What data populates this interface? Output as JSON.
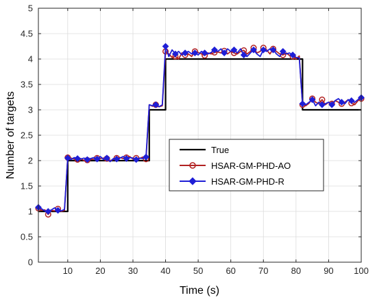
{
  "chart_data": {
    "type": "line",
    "title": "",
    "xlabel": "Time (s)",
    "ylabel": "Number of targets",
    "xlim": [
      1,
      100
    ],
    "ylim": [
      0,
      5
    ],
    "xticks": [
      10,
      20,
      30,
      40,
      50,
      60,
      70,
      80,
      90,
      100
    ],
    "yticks": [
      0,
      0.5,
      1,
      1.5,
      2,
      2.5,
      3,
      3.5,
      4,
      4.5,
      5
    ],
    "ytick_labels": [
      "0",
      "0.5",
      "1",
      "1.5",
      "2",
      "2.5",
      "3",
      "3.5",
      "4",
      "4.5",
      "5"
    ],
    "grid": true,
    "legend_position": "center-right",
    "series": [
      {
        "name": "True",
        "color": "#000000",
        "marker": "none",
        "x": [
          1,
          10,
          10,
          35,
          35,
          40,
          40,
          82,
          82,
          100
        ],
        "y": [
          1,
          1,
          2,
          2,
          3,
          3,
          4,
          4,
          3,
          3
        ]
      },
      {
        "name": "HSAR-GM-PHD-AO",
        "color": "#b22222",
        "marker": "circle",
        "x": [
          1,
          2,
          3,
          4,
          5,
          6,
          7,
          8,
          9,
          10,
          11,
          12,
          13,
          14,
          15,
          16,
          17,
          18,
          19,
          20,
          21,
          22,
          23,
          24,
          25,
          26,
          27,
          28,
          29,
          30,
          31,
          32,
          33,
          34,
          35,
          36,
          37,
          38,
          39,
          40,
          41,
          42,
          43,
          44,
          45,
          46,
          47,
          48,
          49,
          50,
          51,
          52,
          53,
          54,
          55,
          56,
          57,
          58,
          59,
          60,
          61,
          62,
          63,
          64,
          65,
          66,
          67,
          68,
          69,
          70,
          71,
          72,
          73,
          74,
          75,
          76,
          77,
          78,
          79,
          80,
          81,
          82,
          83,
          84,
          85,
          86,
          87,
          88,
          89,
          90,
          91,
          92,
          93,
          94,
          95,
          96,
          97,
          98,
          99,
          100
        ],
        "y": [
          1.06,
          1.02,
          1.03,
          0.94,
          1.02,
          1.01,
          1.05,
          1.0,
          1.02,
          2.06,
          2.05,
          2.03,
          2.02,
          2.04,
          2.0,
          2.01,
          2.02,
          2.03,
          2.05,
          2.04,
          2.05,
          2.04,
          2.0,
          2.02,
          2.05,
          2.06,
          2.04,
          2.06,
          2.08,
          2.03,
          2.05,
          2.04,
          2.07,
          2.03,
          3.1,
          3.07,
          3.1,
          3.06,
          3.08,
          4.15,
          4.1,
          4.03,
          4.05,
          4.0,
          4.12,
          4.08,
          4.1,
          4.05,
          4.15,
          4.13,
          4.1,
          4.07,
          4.12,
          4.1,
          4.13,
          4.14,
          4.12,
          4.16,
          4.1,
          4.15,
          4.12,
          4.1,
          4.15,
          4.17,
          4.1,
          4.15,
          4.22,
          4.12,
          4.15,
          4.22,
          4.18,
          4.1,
          4.2,
          4.15,
          4.1,
          4.08,
          4.12,
          4.07,
          4.05,
          4.0,
          4.06,
          3.1,
          3.08,
          3.13,
          3.22,
          3.15,
          3.12,
          3.2,
          3.1,
          3.15,
          3.12,
          3.18,
          3.15,
          3.12,
          3.15,
          3.2,
          3.13,
          3.1,
          3.18,
          3.22
        ]
      },
      {
        "name": "HSAR-GM-PHD-R",
        "color": "#1f1fd6",
        "marker": "diamond",
        "x": [
          1,
          2,
          3,
          4,
          5,
          6,
          7,
          8,
          9,
          10,
          11,
          12,
          13,
          14,
          15,
          16,
          17,
          18,
          19,
          20,
          21,
          22,
          23,
          24,
          25,
          26,
          27,
          28,
          29,
          30,
          31,
          32,
          33,
          34,
          35,
          36,
          37,
          38,
          39,
          40,
          41,
          42,
          43,
          44,
          45,
          46,
          47,
          48,
          49,
          50,
          51,
          52,
          53,
          54,
          55,
          56,
          57,
          58,
          59,
          60,
          61,
          62,
          63,
          64,
          65,
          66,
          67,
          68,
          69,
          70,
          71,
          72,
          73,
          74,
          75,
          76,
          77,
          78,
          79,
          80,
          81,
          82,
          83,
          84,
          85,
          86,
          87,
          88,
          89,
          90,
          91,
          92,
          93,
          94,
          95,
          96,
          97,
          98,
          99,
          100
        ],
        "y": [
          1.08,
          1.05,
          1.01,
          1.0,
          1.03,
          1.07,
          1.02,
          1.01,
          1.04,
          2.05,
          2.02,
          2.06,
          2.04,
          2.03,
          2.05,
          2.02,
          2.04,
          2.06,
          2.03,
          2.08,
          2.02,
          2.05,
          1.98,
          2.04,
          2.03,
          2.05,
          2.08,
          2.04,
          2.06,
          2.05,
          2.02,
          2.05,
          2.04,
          2.07,
          3.1,
          3.08,
          3.1,
          3.06,
          3.1,
          4.25,
          4.05,
          4.18,
          4.1,
          4.15,
          4.08,
          4.12,
          4.15,
          4.1,
          4.12,
          4.08,
          4.15,
          4.12,
          4.1,
          4.13,
          4.18,
          4.15,
          4.2,
          4.12,
          4.2,
          4.15,
          4.18,
          4.12,
          4.2,
          4.08,
          4.05,
          4.12,
          4.18,
          4.1,
          4.05,
          4.18,
          4.15,
          4.2,
          4.18,
          4.1,
          4.05,
          4.15,
          4.1,
          4.12,
          4.08,
          4.03,
          4.02,
          3.12,
          3.1,
          3.15,
          3.2,
          3.08,
          3.15,
          3.1,
          3.12,
          3.15,
          3.1,
          3.18,
          3.22,
          3.15,
          3.12,
          3.2,
          3.18,
          3.15,
          3.2,
          3.24
        ]
      }
    ]
  }
}
